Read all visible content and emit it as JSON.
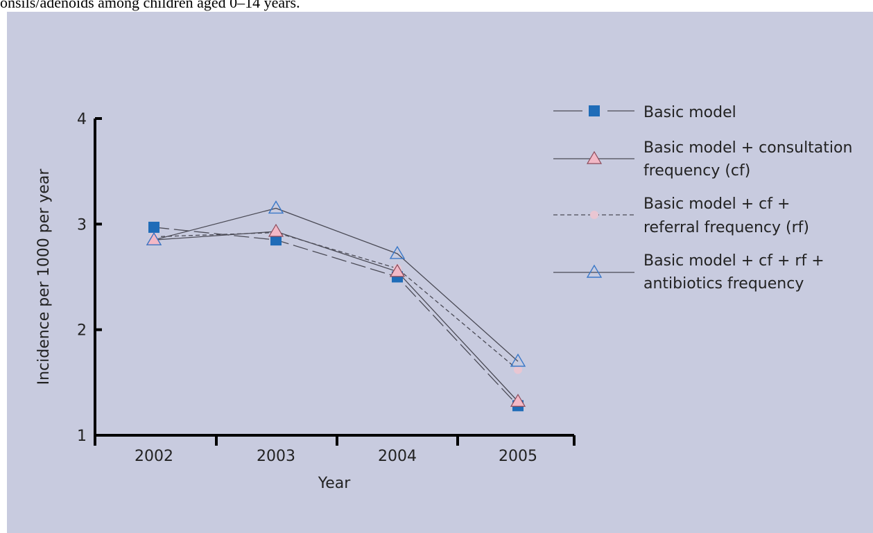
{
  "caption": "onsils/adenoids among children aged 0–14 years.",
  "colors": {
    "panel_bg": "#c8cbdf",
    "axis": "#000000",
    "line": "#4a4a55",
    "square_marker": "#1f6cb8",
    "triangle_pink": "#f2b8c6",
    "triangle_stroke": "#8a4a5a",
    "triangle_blue_stroke": "#3a78c8",
    "circle_pink": "#e9c6d2"
  },
  "chart_data": {
    "type": "line",
    "title": "",
    "xlabel": "Year",
    "ylabel": "Incidence per 1000 per year",
    "categories": [
      "2002",
      "2003",
      "2004",
      "2005"
    ],
    "ylim": [
      1,
      4
    ],
    "yticks": [
      "1",
      "2",
      "3",
      "4"
    ],
    "grid": false,
    "legend_position": "right",
    "series": [
      {
        "name": "Basic model",
        "values": [
          2.97,
          2.85,
          2.5,
          1.28
        ],
        "marker": "square",
        "line_style": "long-dash"
      },
      {
        "name": "Basic model + consultation frequency (cf)",
        "legend_lines": [
          "Basic model + consultation",
          "frequency (cf)"
        ],
        "values": [
          2.85,
          2.93,
          2.55,
          1.32
        ],
        "marker": "triangle-pink",
        "line_style": "solid"
      },
      {
        "name": "Basic model + cf + referral frequency (rf)",
        "legend_lines": [
          "Basic model + cf +",
          "referral frequency (rf)"
        ],
        "values": [
          2.88,
          2.92,
          2.58,
          1.62
        ],
        "marker": "circle-pink",
        "line_style": "dashed"
      },
      {
        "name": "Basic model + cf + rf + antibiotics frequency",
        "legend_lines": [
          "Basic model + cf + rf +",
          "antibiotics frequency"
        ],
        "values": [
          2.85,
          3.15,
          2.72,
          1.7
        ],
        "marker": "triangle-blue",
        "line_style": "solid"
      }
    ]
  }
}
